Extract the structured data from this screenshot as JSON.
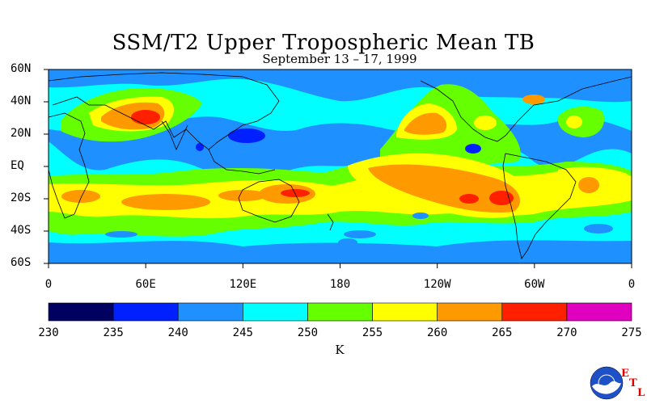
{
  "title": "SSM/T2 Upper Tropospheric Mean TB",
  "subtitle": "September 13 – 17, 1999",
  "lat_labels": [
    "60N",
    "40N",
    "20N",
    "EQ",
    "20S",
    "40S",
    "60S"
  ],
  "lon_labels": [
    "0",
    "60E",
    "120E",
    "180",
    "120W",
    "60W",
    "0"
  ],
  "colorbar": {
    "ticks": [
      "230",
      "235",
      "240",
      "245",
      "250",
      "255",
      "260",
      "265",
      "270",
      "275"
    ],
    "colors": [
      "#000060",
      "#0020ff",
      "#1e90ff",
      "#00ffff",
      "#66ff00",
      "#ffff00",
      "#ff9900",
      "#ff2000",
      "#e000c0"
    ],
    "units": "K"
  },
  "map_colors": {
    "c240": "#1e90ff",
    "c245": "#00ffff",
    "c250": "#66ff00",
    "c255": "#ffff00",
    "c260": "#ff9900",
    "c265": "#ff2000",
    "c235": "#0020ff"
  },
  "logo": {
    "name": "NOAA",
    "letters": [
      "E",
      "T",
      "L"
    ]
  }
}
